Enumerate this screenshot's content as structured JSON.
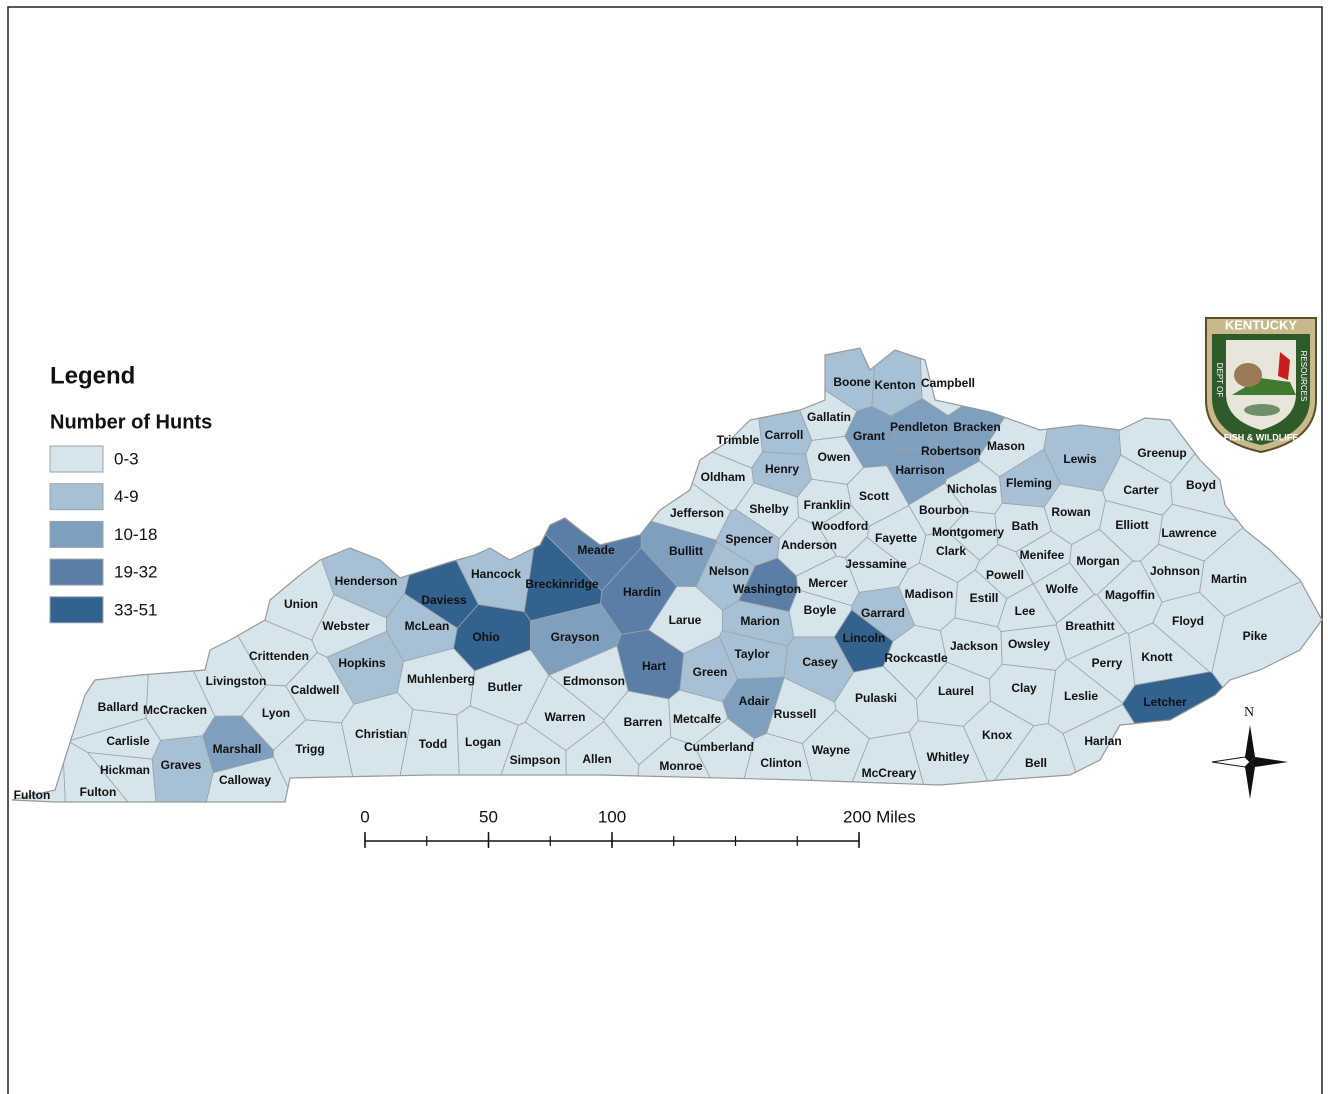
{
  "legend": {
    "title": "Legend",
    "subtitle": "Number of Hunts",
    "classes": [
      {
        "label": "0-3",
        "color": "#d6e4ec"
      },
      {
        "label": "4-9",
        "color": "#a8c0d4"
      },
      {
        "label": "10-18",
        "color": "#7f9fbe"
      },
      {
        "label": "19-32",
        "color": "#5b7ea6"
      },
      {
        "label": "33-51",
        "color": "#33628f"
      }
    ]
  },
  "counties": [
    {
      "name": "Boone",
      "class": 1
    },
    {
      "name": "Kenton",
      "class": 1
    },
    {
      "name": "Campbell",
      "class": 0
    },
    {
      "name": "Gallatin",
      "class": 0
    },
    {
      "name": "Carroll",
      "class": 1
    },
    {
      "name": "Trimble",
      "class": 0
    },
    {
      "name": "Grant",
      "class": 2
    },
    {
      "name": "Pendleton",
      "class": 2
    },
    {
      "name": "Bracken",
      "class": 2
    },
    {
      "name": "Robertson",
      "class": 2
    },
    {
      "name": "Mason",
      "class": 0
    },
    {
      "name": "Harrison",
      "class": 2
    },
    {
      "name": "Henry",
      "class": 1
    },
    {
      "name": "Owen",
      "class": 0
    },
    {
      "name": "Oldham",
      "class": 0
    },
    {
      "name": "Lewis",
      "class": 1
    },
    {
      "name": "Greenup",
      "class": 0
    },
    {
      "name": "Boyd",
      "class": 0
    },
    {
      "name": "Carter",
      "class": 0
    },
    {
      "name": "Fleming",
      "class": 1
    },
    {
      "name": "Nicholas",
      "class": 0
    },
    {
      "name": "Scott",
      "class": 0
    },
    {
      "name": "Bourbon",
      "class": 0
    },
    {
      "name": "Rowan",
      "class": 0
    },
    {
      "name": "Elliott",
      "class": 0
    },
    {
      "name": "Lawrence",
      "class": 0
    },
    {
      "name": "Jefferson",
      "class": 0
    },
    {
      "name": "Shelby",
      "class": 0
    },
    {
      "name": "Franklin",
      "class": 0
    },
    {
      "name": "Woodford",
      "class": 0
    },
    {
      "name": "Fayette",
      "class": 0
    },
    {
      "name": "Montgomery",
      "class": 0
    },
    {
      "name": "Bath",
      "class": 0
    },
    {
      "name": "Clark",
      "class": 0
    },
    {
      "name": "Anderson",
      "class": 0
    },
    {
      "name": "Spencer",
      "class": 1
    },
    {
      "name": "Bullitt",
      "class": 2
    },
    {
      "name": "Meade",
      "class": 3
    },
    {
      "name": "Menifee",
      "class": 0
    },
    {
      "name": "Morgan",
      "class": 0
    },
    {
      "name": "Johnson",
      "class": 0
    },
    {
      "name": "Martin",
      "class": 0
    },
    {
      "name": "Jessamine",
      "class": 0
    },
    {
      "name": "Nelson",
      "class": 1
    },
    {
      "name": "Breckinridge",
      "class": 4
    },
    {
      "name": "Hancock",
      "class": 1
    },
    {
      "name": "Daviess",
      "class": 4
    },
    {
      "name": "Henderson",
      "class": 1
    },
    {
      "name": "Union",
      "class": 0
    },
    {
      "name": "Washington",
      "class": 3
    },
    {
      "name": "Mercer",
      "class": 0
    },
    {
      "name": "Powell",
      "class": 0
    },
    {
      "name": "Wolfe",
      "class": 0
    },
    {
      "name": "Magoffin",
      "class": 0
    },
    {
      "name": "Hardin",
      "class": 3
    },
    {
      "name": "Madison",
      "class": 0
    },
    {
      "name": "Estill",
      "class": 0
    },
    {
      "name": "Boyle",
      "class": 0
    },
    {
      "name": "Garrard",
      "class": 1
    },
    {
      "name": "Lee",
      "class": 0
    },
    {
      "name": "Breathitt",
      "class": 0
    },
    {
      "name": "Floyd",
      "class": 0
    },
    {
      "name": "Pike",
      "class": 0
    },
    {
      "name": "Webster",
      "class": 0
    },
    {
      "name": "McLean",
      "class": 1
    },
    {
      "name": "Ohio",
      "class": 4
    },
    {
      "name": "Grayson",
      "class": 2
    },
    {
      "name": "Larue",
      "class": 0
    },
    {
      "name": "Marion",
      "class": 1
    },
    {
      "name": "Lincoln",
      "class": 4
    },
    {
      "name": "Jackson",
      "class": 0
    },
    {
      "name": "Owsley",
      "class": 0
    },
    {
      "name": "Crittenden",
      "class": 0
    },
    {
      "name": "Hopkins",
      "class": 1
    },
    {
      "name": "Taylor",
      "class": 1
    },
    {
      "name": "Casey",
      "class": 1
    },
    {
      "name": "Rockcastle",
      "class": 0
    },
    {
      "name": "Perry",
      "class": 0
    },
    {
      "name": "Knott",
      "class": 0
    },
    {
      "name": "Hart",
      "class": 3
    },
    {
      "name": "Green",
      "class": 1
    },
    {
      "name": "Livingston",
      "class": 0
    },
    {
      "name": "Caldwell",
      "class": 0
    },
    {
      "name": "Muhlenberg",
      "class": 0
    },
    {
      "name": "Butler",
      "class": 0
    },
    {
      "name": "Edmonson",
      "class": 0
    },
    {
      "name": "Laurel",
      "class": 0
    },
    {
      "name": "Clay",
      "class": 0
    },
    {
      "name": "Leslie",
      "class": 0
    },
    {
      "name": "Letcher",
      "class": 4
    },
    {
      "name": "Pulaski",
      "class": 0
    },
    {
      "name": "Adair",
      "class": 2
    },
    {
      "name": "Ballard",
      "class": 0
    },
    {
      "name": "McCracken",
      "class": 0
    },
    {
      "name": "Lyon",
      "class": 0
    },
    {
      "name": "Russell",
      "class": 0
    },
    {
      "name": "Warren",
      "class": 0
    },
    {
      "name": "Barren",
      "class": 0
    },
    {
      "name": "Metcalfe",
      "class": 0
    },
    {
      "name": "Carlisle",
      "class": 0
    },
    {
      "name": "Christian",
      "class": 0
    },
    {
      "name": "Todd",
      "class": 0
    },
    {
      "name": "Logan",
      "class": 0
    },
    {
      "name": "Marshall",
      "class": 2
    },
    {
      "name": "Trigg",
      "class": 0
    },
    {
      "name": "Cumberland",
      "class": 0
    },
    {
      "name": "Wayne",
      "class": 0
    },
    {
      "name": "Knox",
      "class": 0
    },
    {
      "name": "Harlan",
      "class": 0
    },
    {
      "name": "Hickman",
      "class": 0
    },
    {
      "name": "Graves",
      "class": 1
    },
    {
      "name": "Simpson",
      "class": 0
    },
    {
      "name": "Allen",
      "class": 0
    },
    {
      "name": "Monroe",
      "class": 0
    },
    {
      "name": "Clinton",
      "class": 0
    },
    {
      "name": "Whitley",
      "class": 0
    },
    {
      "name": "Bell",
      "class": 0
    },
    {
      "name": "McCreary",
      "class": 0
    },
    {
      "name": "Calloway",
      "class": 0
    },
    {
      "name": "Fulton",
      "class": 0
    },
    {
      "name": "Fulton",
      "class": 0
    }
  ],
  "scale_bar": {
    "ticks": [
      0,
      50,
      100,
      {
        "value": 200,
        "label": "200 Miles"
      }
    ],
    "max": 200
  },
  "compass": "N",
  "logo": {
    "top": "KENTUCKY",
    "left": "DEPT OF",
    "right": "RESOURCES",
    "bottom": "FISH & WILDLIFE"
  }
}
